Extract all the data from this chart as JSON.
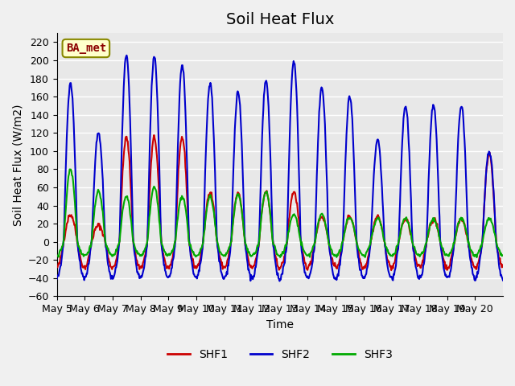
{
  "title": "Soil Heat Flux",
  "xlabel": "Time",
  "ylabel": "Soil Heat Flux (W/m2)",
  "ylim": [
    -60,
    230
  ],
  "yticks": [
    -60,
    -40,
    -20,
    0,
    20,
    40,
    60,
    80,
    100,
    120,
    140,
    160,
    180,
    200,
    220
  ],
  "xtick_labels": [
    "May 5",
    "May 6",
    "May 7",
    "May 8",
    "May 9",
    "May 10",
    "May 11",
    "May 12",
    "May 13",
    "May 14",
    "May 15",
    "May 16",
    "May 17",
    "May 18",
    "May 19",
    "May 20"
  ],
  "colors": {
    "SHF1": "#cc0000",
    "SHF2": "#0000cc",
    "SHF3": "#00aa00"
  },
  "annotation_text": "BA_met",
  "annotation_bg": "#ffffcc",
  "annotation_border": "#888800",
  "plot_bg": "#e8e8e8",
  "grid_color": "#ffffff",
  "title_fontsize": 14,
  "label_fontsize": 10,
  "tick_fontsize": 9,
  "legend_fontsize": 10,
  "line_width": 1.5,
  "shf2_day_peaks": [
    175,
    120,
    205,
    205,
    195,
    175,
    165,
    178,
    200,
    170,
    160,
    113,
    150,
    150,
    150,
    100
  ],
  "shf1_day_peaks": [
    30,
    18,
    115,
    115,
    115,
    55,
    53,
    55,
    55,
    28,
    28,
    28,
    25,
    25,
    25,
    98
  ],
  "shf3_day_peaks": [
    80,
    56,
    50,
    60,
    50,
    50,
    52,
    55,
    30,
    30,
    27,
    26,
    26,
    25,
    26,
    26
  ],
  "shf2_trough": 40,
  "shf1_trough": 28,
  "shf3_trough": 15
}
